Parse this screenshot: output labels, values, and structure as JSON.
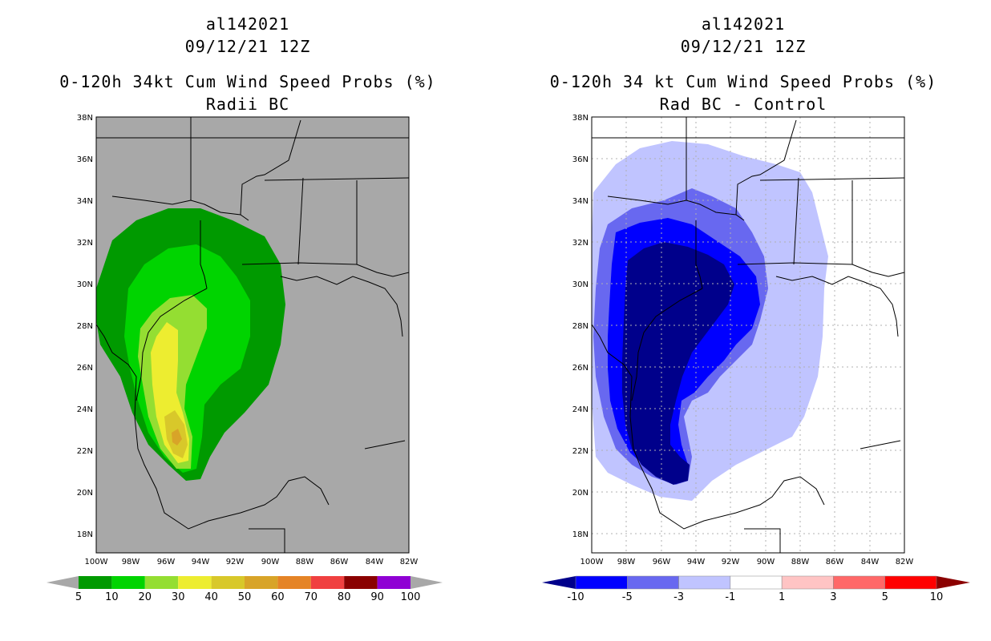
{
  "left": {
    "storm_id": "al142021",
    "datetime": "09/12/21 12Z",
    "title": "0-120h 34kt Cum Wind Speed Probs (%)",
    "subtitle": "Radii BC",
    "colorbar": {
      "labels": [
        "5",
        "10",
        "20",
        "30",
        "40",
        "50",
        "60",
        "70",
        "80",
        "90",
        "100"
      ],
      "colors": [
        "#009a00",
        "#00d400",
        "#94de32",
        "#eded30",
        "#d8c82a",
        "#d8a428",
        "#e58426",
        "#f04040",
        "#8a0000",
        "#8f00d4"
      ]
    }
  },
  "right": {
    "storm_id": "al142021",
    "datetime": "09/12/21 12Z",
    "title": "0-120h 34 kt Cum Wind Speed Probs (%)",
    "subtitle": "Rad BC - Control",
    "colorbar": {
      "labels": [
        "-10",
        "-5",
        "-3",
        "-1",
        "1",
        "3",
        "5",
        "10"
      ],
      "colors": [
        "#00008b",
        "#0000ff",
        "#6868f0",
        "#c0c4ff",
        "#ffffff",
        "#ffc4c4",
        "#ff6868",
        "#ff0000",
        "#8b0000"
      ]
    }
  },
  "axes": {
    "lat_labels": [
      "38N",
      "36N",
      "34N",
      "32N",
      "30N",
      "28N",
      "26N",
      "24N",
      "22N",
      "20N",
      "18N"
    ],
    "lon_labels": [
      "100W",
      "98W",
      "96W",
      "94W",
      "92W",
      "90W",
      "88W",
      "86W",
      "84W",
      "82W"
    ],
    "lat_range": [
      17,
      38
    ],
    "lon_range": [
      -100,
      -82
    ]
  }
}
